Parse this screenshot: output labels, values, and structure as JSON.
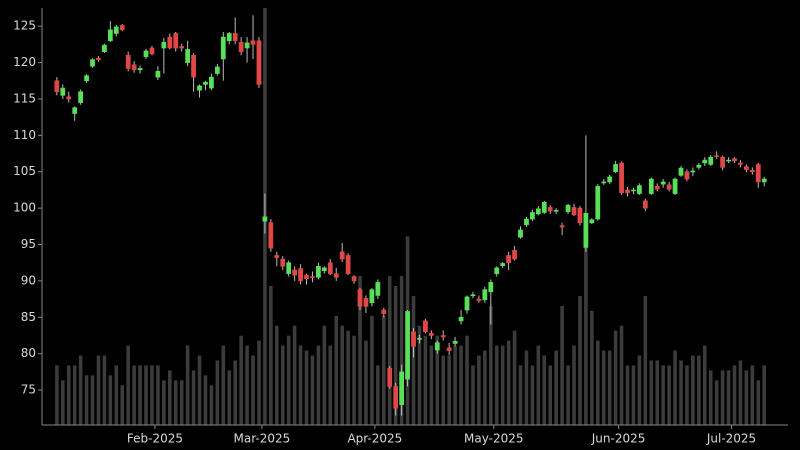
{
  "chart_data": {
    "type": "candlestick",
    "up_color": "#58e058",
    "down_color": "#e04848",
    "volume_color": "#3c3c3c",
    "open": [
      117.5,
      115.5,
      115.3,
      113,
      114.5,
      117.5,
      119.5,
      120.6,
      121.5,
      123,
      124,
      125.1,
      121,
      119.7,
      119,
      120.8,
      122,
      118,
      122,
      123.5,
      124,
      122.2,
      120,
      121,
      116.2,
      117,
      116.5,
      118.5,
      120.5,
      123,
      124,
      122.8,
      122,
      123,
      123,
      98.2,
      98,
      93.5,
      93,
      91,
      91.5,
      91.7,
      90.8,
      90.6,
      90.5,
      91.4,
      92.5,
      91,
      94,
      93.5,
      90.6,
      88.8,
      87.6,
      87,
      88,
      86,
      78,
      75.5,
      73,
      76.5,
      83,
      82,
      84.5,
      82.8,
      80.5,
      82.5,
      80.8,
      81.4,
      84.5,
      86,
      88,
      87.5,
      87.4,
      88.5,
      91,
      92.1,
      93.5,
      94.2,
      96,
      97.7,
      98.5,
      99.2,
      99.4,
      100.1,
      99.6,
      97.6,
      99.5,
      100.1,
      100,
      94.6,
      98,
      98.5,
      103.5,
      103.6,
      105,
      106.2,
      102.5,
      102.4,
      102,
      101,
      102,
      103,
      103.3,
      103.2,
      102,
      104.5,
      105,
      105,
      105.6,
      106.2,
      106,
      107.2,
      107,
      106.5,
      106.8,
      106.2,
      105.7,
      105.2,
      106,
      103.6
    ],
    "high": [
      118,
      117,
      116,
      114,
      116.3,
      118.4,
      120.6,
      120.9,
      122.6,
      125.7,
      125.2,
      125.3,
      121.5,
      120.2,
      119.6,
      121.9,
      122.3,
      119.5,
      123.4,
      124,
      124.2,
      122.6,
      123,
      121.3,
      117,
      117.5,
      118.5,
      119.8,
      124.2,
      124.2,
      126.2,
      123.5,
      123.5,
      126.5,
      123.5,
      102,
      98.5,
      94,
      93.4,
      92.8,
      92,
      92.3,
      91,
      91.3,
      92.5,
      92,
      93,
      91.8,
      95.2,
      93.8,
      90.8,
      89,
      88,
      89,
      90.2,
      86.3,
      78.3,
      76,
      78.5,
      86,
      83.5,
      82.6,
      84.8,
      83.2,
      81.8,
      83.2,
      81.5,
      82.3,
      86,
      88,
      88.5,
      88,
      89.2,
      90.2,
      92,
      92.6,
      94,
      94.8,
      97.5,
      98.8,
      99.8,
      100.3,
      101,
      100.4,
      100,
      98,
      100.6,
      100.6,
      100.3,
      110,
      98.6,
      103.3,
      104,
      104.6,
      106.5,
      106.4,
      102.9,
      102.8,
      103.4,
      101.3,
      104.2,
      103.4,
      104,
      103.6,
      104.2,
      105.8,
      105.3,
      105.6,
      106.2,
      107,
      107.3,
      107.8,
      107.2,
      107,
      107,
      106.6,
      106,
      105.6,
      106.2,
      104.3
    ],
    "low": [
      115.5,
      115,
      114.5,
      112,
      114.2,
      117.2,
      119.3,
      120.1,
      121.3,
      122.8,
      123.6,
      124.3,
      118.8,
      118.6,
      118.5,
      120.5,
      121,
      117.6,
      118.5,
      121.8,
      121.5,
      121.5,
      119.5,
      116,
      115.2,
      116.2,
      116.2,
      118.2,
      117.5,
      122.5,
      122.5,
      121,
      120,
      120.5,
      116.5,
      96.5,
      94,
      92,
      91.5,
      90.6,
      90,
      89.5,
      89.5,
      89.8,
      90.2,
      91,
      90.8,
      90,
      92.6,
      90.8,
      89.6,
      86,
      85.6,
      86.5,
      87.5,
      85,
      75.2,
      71.5,
      71.5,
      75.5,
      79.5,
      81.4,
      82.8,
      82,
      80,
      81.8,
      79.8,
      81,
      84,
      85.5,
      87.6,
      87,
      87,
      84,
      90.6,
      91.8,
      91.5,
      92.8,
      95.8,
      97.4,
      98.2,
      99,
      99.2,
      99.2,
      99.2,
      96.3,
      99.2,
      98.9,
      97.6,
      94,
      97.8,
      98.3,
      103.2,
      103.3,
      104.8,
      101.8,
      101.6,
      101.9,
      101.8,
      99.6,
      101.8,
      102.3,
      102.8,
      102.3,
      101.8,
      104.3,
      103.7,
      104.4,
      105.3,
      105.8,
      105.8,
      106.8,
      105.2,
      106.2,
      106.2,
      105.6,
      104.9,
      104.6,
      102.8,
      103
    ],
    "close": [
      116,
      116.5,
      115,
      113.8,
      116,
      118.2,
      120.4,
      120.4,
      122.4,
      124.5,
      124.9,
      124.5,
      119.2,
      119,
      119.2,
      121.6,
      121.2,
      118.8,
      122.8,
      122,
      122,
      122,
      121.8,
      118,
      116.8,
      117.3,
      118,
      119.4,
      123.5,
      124,
      123,
      121.5,
      122.7,
      122.5,
      117,
      98.8,
      94.5,
      93.2,
      92,
      92.5,
      90.8,
      90,
      90.3,
      90.5,
      92,
      91.8,
      91,
      90.5,
      93,
      91,
      90,
      86.5,
      86.5,
      88.8,
      89.8,
      85.5,
      75.5,
      72.5,
      77.5,
      85.8,
      81,
      82.1,
      83,
      82.5,
      81.5,
      82.3,
      80.4,
      81.7,
      85,
      87.8,
      88.1,
      87.3,
      88.8,
      89.8,
      91.8,
      92.4,
      92.5,
      93,
      97,
      98.5,
      99.4,
      99.9,
      100.8,
      99.6,
      99.7,
      97.4,
      100.4,
      99.1,
      98,
      99.3,
      98.4,
      103,
      103.6,
      104.3,
      106,
      102.1,
      102.1,
      102.5,
      103.1,
      100,
      104,
      102.6,
      103.6,
      102.6,
      104,
      105.5,
      104,
      105.1,
      105.9,
      106.6,
      107,
      107.1,
      105.6,
      106.6,
      106.5,
      106,
      105.3,
      105,
      103.6,
      104
    ],
    "volume": [
      6,
      4.5,
      6,
      6,
      7,
      5,
      5,
      7,
      7,
      5,
      6,
      4,
      8,
      6,
      6,
      6,
      6,
      6,
      4.5,
      5.5,
      4.5,
      4.5,
      8,
      5.5,
      7,
      5,
      4,
      6.5,
      8,
      5.5,
      6.5,
      9,
      8,
      7,
      8.5,
      42,
      14,
      10,
      8,
      9,
      10,
      8,
      7.5,
      7,
      8,
      10,
      8,
      11,
      10,
      9.5,
      9,
      15,
      8.5,
      11,
      6,
      11,
      15,
      14,
      15,
      19,
      13,
      10,
      9,
      8,
      9,
      7,
      7,
      8,
      8,
      9,
      6,
      7,
      7.5,
      12,
      8,
      8,
      8.5,
      9.5,
      6,
      7.5,
      6,
      8,
      7,
      6,
      7.5,
      12,
      6,
      8,
      13,
      20,
      11.5,
      8.5,
      7.5,
      7.5,
      9.5,
      10,
      6,
      6,
      7,
      13,
      6.5,
      6.5,
      6,
      6,
      7.5,
      6.5,
      6,
      7,
      7,
      8,
      5.5,
      4.5,
      5.5,
      5.5,
      6,
      6.5,
      5.5,
      6,
      4.5,
      6
    ],
    "xlim": [
      -2.5,
      123
    ],
    "xticks": [
      {
        "value": 16.5,
        "label": "Feb-2025"
      },
      {
        "value": 34.5,
        "label": "Mar-2025"
      },
      {
        "value": 53.5,
        "label": "Apr-2025"
      },
      {
        "value": 73.5,
        "label": "May-2025"
      },
      {
        "value": 94.5,
        "label": "Jun-2025"
      },
      {
        "value": 113.5,
        "label": "Jul-2025"
      }
    ],
    "ylim": [
      70.2,
      127.5
    ],
    "yticks": [
      75,
      80,
      85,
      90,
      95,
      100,
      105,
      110,
      115,
      120,
      125
    ]
  }
}
